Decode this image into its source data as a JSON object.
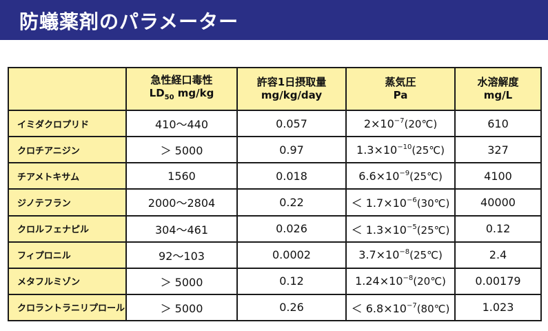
{
  "title": "防蟻薬剤のパラメーター",
  "colors": {
    "banner": "#2a2f86",
    "header_fill": "#fdf2a8",
    "border": "#1a1a1a"
  },
  "table": {
    "headers": [
      {
        "line1": "急性経口毒性",
        "line2_main": "LD",
        "line2_sub": "50",
        "line2_rest": " mg/kg"
      },
      {
        "line1": "許容1日摂取量",
        "line2": "mg/kg/day"
      },
      {
        "line1": "蒸気圧",
        "line2": "Pa"
      },
      {
        "line1": "水溶解度",
        "line2": "mg/L"
      }
    ],
    "rows": [
      {
        "name": "イミダクロプリド",
        "ld50": "410～440",
        "adi": "0.057",
        "vp_prefix": "",
        "vp_mantissa": "2",
        "vp_base": "×10",
        "vp_exp": "−7",
        "vp_temp": "(20℃)",
        "sol": "610"
      },
      {
        "name": "クロチアニジン",
        "ld50": "＞ 5000",
        "adi": "0.97",
        "vp_prefix": "",
        "vp_mantissa": "1.3",
        "vp_base": "×10",
        "vp_exp": "−10",
        "vp_temp": "(25℃)",
        "sol": "327"
      },
      {
        "name": "チアメトキサム",
        "ld50": "1560",
        "adi": "0.018",
        "vp_prefix": "",
        "vp_mantissa": "6.6",
        "vp_base": "×10",
        "vp_exp": "−9",
        "vp_temp": "(25℃)",
        "sol": "4100"
      },
      {
        "name": "ジノテフラン",
        "ld50": "2000～2804",
        "adi": "0.22",
        "vp_prefix": "＜ ",
        "vp_mantissa": "1.7",
        "vp_base": "×10",
        "vp_exp": "−6",
        "vp_temp": "(30℃)",
        "sol": "40000"
      },
      {
        "name": "クロルフェナピル",
        "ld50": "304～461",
        "adi": "0.026",
        "vp_prefix": "＜ ",
        "vp_mantissa": "1.3",
        "vp_base": "×10",
        "vp_exp": "−5",
        "vp_temp": "(25℃)",
        "sol": "0.12"
      },
      {
        "name": "フィプロニル",
        "ld50": "92～103",
        "adi": "0.0002",
        "vp_prefix": "",
        "vp_mantissa": "3.7",
        "vp_base": "×10",
        "vp_exp": "−8",
        "vp_temp": "(25℃)",
        "sol": "2.4"
      },
      {
        "name": "メタフルミゾン",
        "ld50": "＞ 5000",
        "adi": "0.12",
        "vp_prefix": "",
        "vp_mantissa": "1.24",
        "vp_base": "×10",
        "vp_exp": "−8",
        "vp_temp": "(20℃)",
        "sol": "0.00179"
      },
      {
        "name": "クロラントラニリプロール",
        "ld50": "＞ 5000",
        "adi": "0.26",
        "vp_prefix": "＜ ",
        "vp_mantissa": "6.8",
        "vp_base": "×10",
        "vp_exp": "−7",
        "vp_temp": "(80℃)",
        "sol": "1.023"
      }
    ]
  }
}
